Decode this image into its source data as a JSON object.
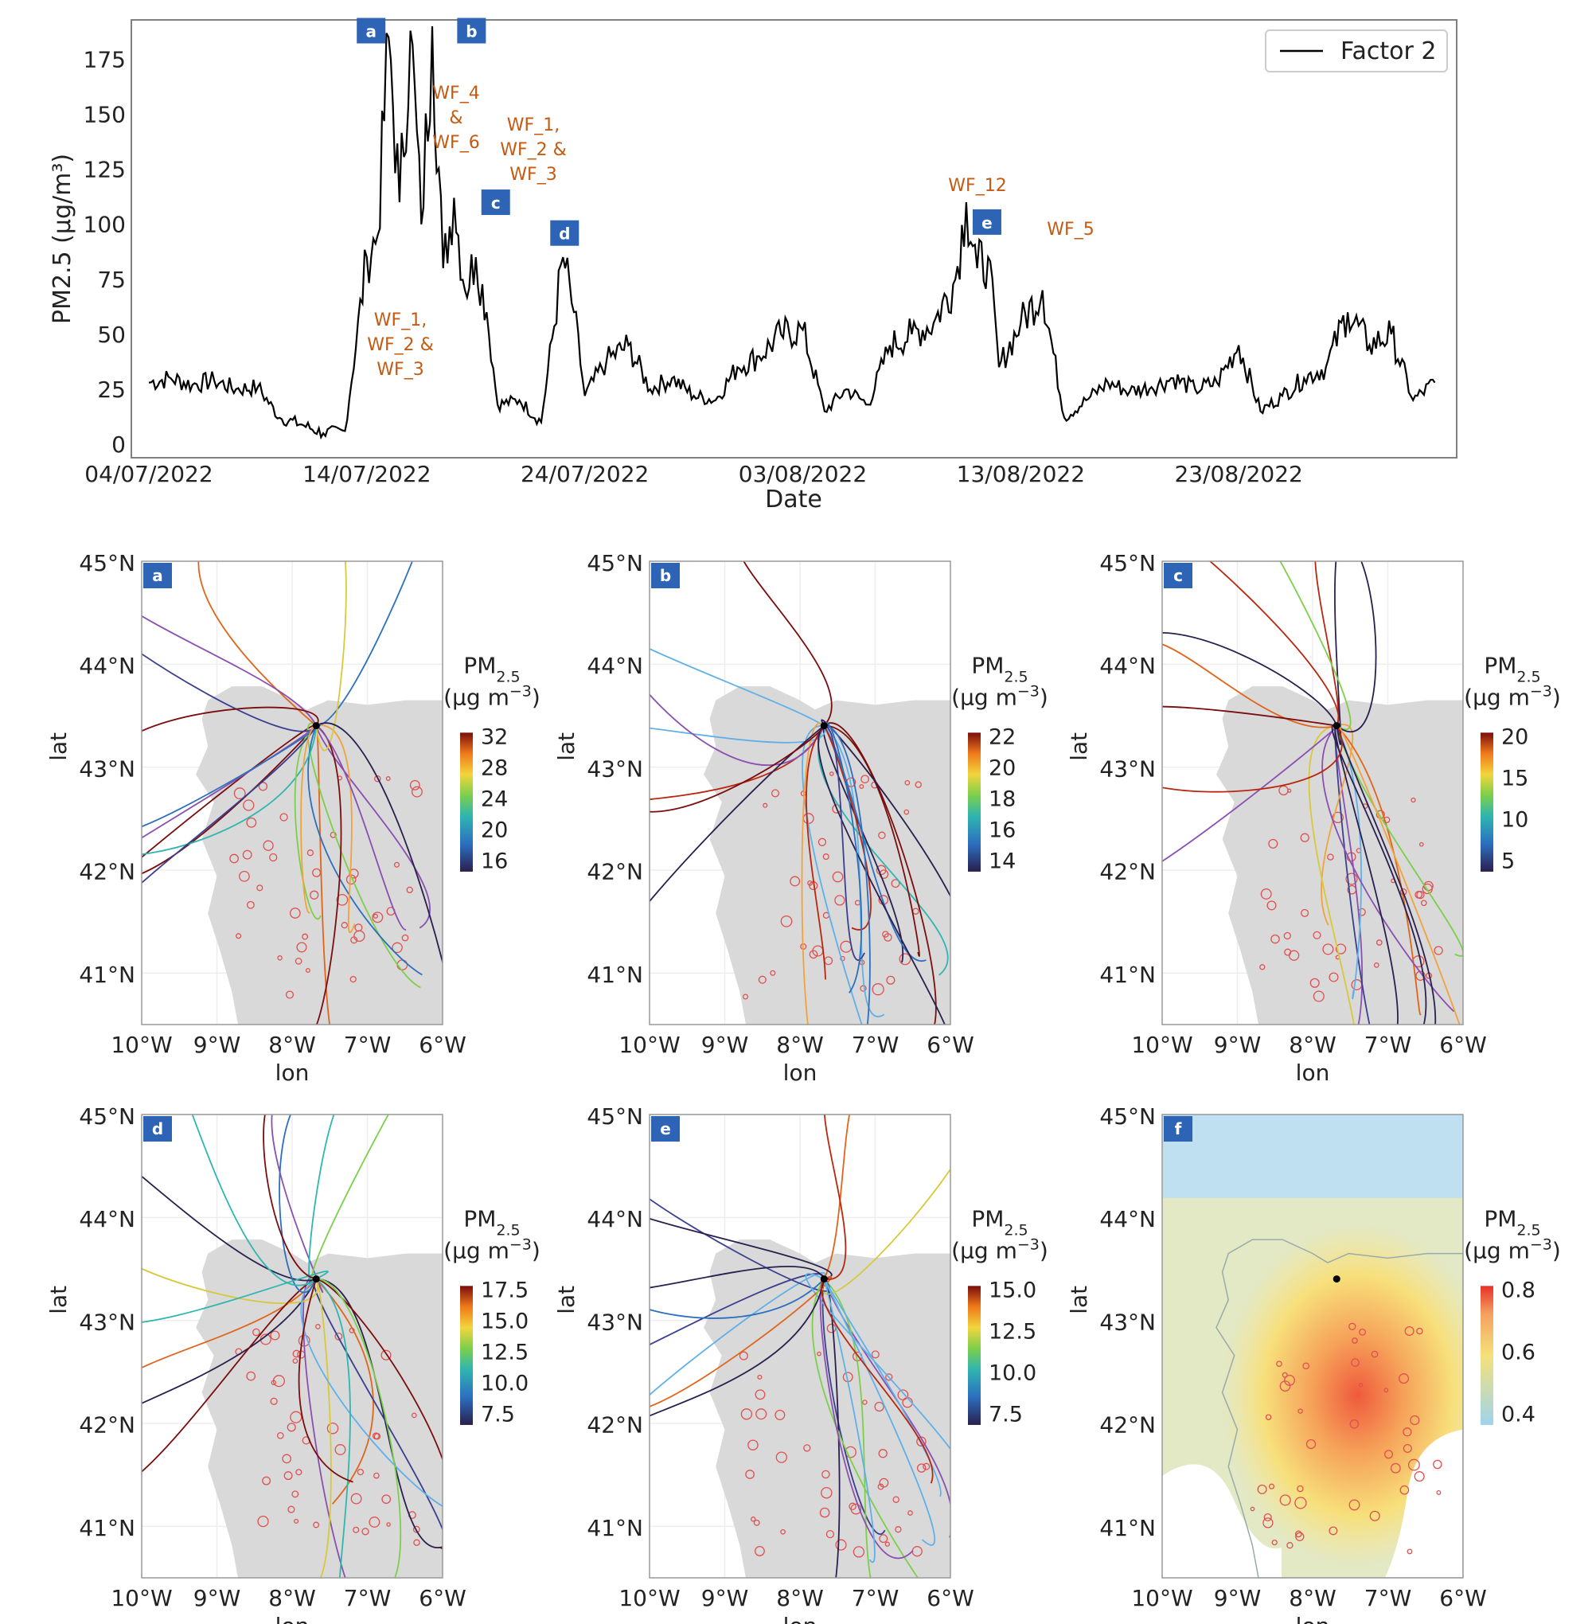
{
  "chart_data": [
    {
      "type": "line",
      "ylabel": "PM2.5 (μg/m³)",
      "xlabel": "Date",
      "ylim": [
        0,
        190
      ],
      "yticks": [
        0,
        25,
        50,
        75,
        100,
        125,
        150,
        175
      ],
      "xticks": [
        "04/07/2022",
        "14/07/2022",
        "24/07/2022",
        "03/08/2022",
        "13/08/2022",
        "23/08/2022"
      ],
      "legend": {
        "position": "top-right",
        "entries": [
          "Factor 2"
        ]
      },
      "series": [
        {
          "name": "Factor 2",
          "color": "#000000",
          "points": [
            [
              "2022-07-04",
              28
            ],
            [
              "2022-07-05",
              30
            ],
            [
              "2022-07-06",
              27
            ],
            [
              "2022-07-07",
              29
            ],
            [
              "2022-07-08",
              25
            ],
            [
              "2022-07-09",
              26
            ],
            [
              "2022-07-10",
              12
            ],
            [
              "2022-07-11",
              9
            ],
            [
              "2022-07-12",
              5
            ],
            [
              "2022-07-13",
              6
            ],
            [
              "2022-07-14",
              85
            ],
            [
              "2022-07-14.5",
              95
            ],
            [
              "2022-07-15",
              185
            ],
            [
              "2022-07-15.5",
              110
            ],
            [
              "2022-07-16",
              188
            ],
            [
              "2022-07-16.5",
              100
            ],
            [
              "2022-07-17",
              190
            ],
            [
              "2022-07-17.5",
              80
            ],
            [
              "2022-07-18",
              112
            ],
            [
              "2022-07-18.5",
              70
            ],
            [
              "2022-07-19",
              85
            ],
            [
              "2022-07-19.5",
              60
            ],
            [
              "2022-07-20",
              18
            ],
            [
              "2022-07-21",
              20
            ],
            [
              "2022-07-22",
              10
            ],
            [
              "2022-07-23",
              85
            ],
            [
              "2022-07-23.5",
              60
            ],
            [
              "2022-07-24",
              22
            ],
            [
              "2022-07-25",
              38
            ],
            [
              "2022-07-26",
              45
            ],
            [
              "2022-07-27",
              25
            ],
            [
              "2022-07-28",
              30
            ],
            [
              "2022-07-29",
              22
            ],
            [
              "2022-07-30",
              20
            ],
            [
              "2022-07-31",
              35
            ],
            [
              "2022-08-01",
              40
            ],
            [
              "2022-08-02",
              50
            ],
            [
              "2022-08-03",
              52
            ],
            [
              "2022-08-04",
              15
            ],
            [
              "2022-08-05",
              25
            ],
            [
              "2022-08-06",
              18
            ],
            [
              "2022-08-07",
              45
            ],
            [
              "2022-08-08",
              50
            ],
            [
              "2022-08-09",
              55
            ],
            [
              "2022-08-10",
              75
            ],
            [
              "2022-08-10.5",
              110
            ],
            [
              "2022-08-11",
              80
            ],
            [
              "2022-08-11.5",
              85
            ],
            [
              "2022-08-12",
              35
            ],
            [
              "2022-08-13",
              55
            ],
            [
              "2022-08-14",
              70
            ],
            [
              "2022-08-15",
              12
            ],
            [
              "2022-08-16",
              20
            ],
            [
              "2022-08-17",
              28
            ],
            [
              "2022-08-18",
              24
            ],
            [
              "2022-08-19",
              26
            ],
            [
              "2022-08-20",
              30
            ],
            [
              "2022-08-21",
              25
            ],
            [
              "2022-08-22",
              28
            ],
            [
              "2022-08-23",
              45
            ],
            [
              "2022-08-24",
              15
            ],
            [
              "2022-08-25",
              22
            ],
            [
              "2022-08-26",
              30
            ],
            [
              "2022-08-27",
              35
            ],
            [
              "2022-08-28",
              60
            ],
            [
              "2022-08-29",
              45
            ],
            [
              "2022-08-30",
              50
            ],
            [
              "2022-08-31",
              20
            ],
            [
              "2022-09-01",
              28
            ]
          ]
        }
      ],
      "markers": [
        {
          "label": "a",
          "date": "2022-07-15",
          "value": 188
        },
        {
          "label": "b",
          "date": "2022-07-18",
          "value": 188
        },
        {
          "label": "c",
          "date": "2022-07-19",
          "value": 110
        },
        {
          "label": "d",
          "date": "2022-07-23",
          "value": 96
        },
        {
          "label": "e",
          "date": "2022-08-12",
          "value": 101
        }
      ],
      "annotations": [
        {
          "lines": [
            "WF_4",
            "&",
            "WF_6"
          ],
          "color": "#c55a11"
        },
        {
          "lines": [
            "WF_1,",
            "WF_2 &",
            "WF_3"
          ],
          "color": "#c55a11"
        },
        {
          "lines": [
            "WF_1,",
            "WF_2 &",
            "WF_3"
          ],
          "color": "#c55a11"
        },
        {
          "lines": [
            "WF_12"
          ],
          "color": "#c55a11"
        },
        {
          "lines": [
            "WF_5"
          ],
          "color": "#c55a11"
        }
      ]
    },
    {
      "type": "map",
      "panels": [
        {
          "label": "a",
          "colorbar": [
            "32",
            "28",
            "24",
            "20",
            "16"
          ]
        },
        {
          "label": "b",
          "colorbar": [
            "22",
            "20",
            "18",
            "16",
            "14"
          ]
        },
        {
          "label": "c",
          "colorbar": [
            "20",
            "15",
            "10",
            "5"
          ]
        },
        {
          "label": "d",
          "colorbar": [
            "17.5",
            "15.0",
            "12.5",
            "10.0",
            "7.5"
          ]
        },
        {
          "label": "e",
          "colorbar": [
            "15.0",
            "12.5",
            "10.0",
            "7.5"
          ]
        },
        {
          "label": "f",
          "colorbar": [
            "0.8",
            "0.6",
            "0.4"
          ]
        }
      ],
      "colorbar_title": [
        "PM",
        "2.5",
        "(μg m",
        "−3",
        ")"
      ],
      "xlabel": "lon",
      "ylabel": "lat",
      "xticks": [
        "10°W",
        "9°W",
        "8°W",
        "7°W",
        "6°W"
      ],
      "yticks": [
        "45°N",
        "44°N",
        "43°N",
        "42°N",
        "41°N"
      ],
      "colors": {
        "land": "#d9d9d9",
        "fires": "#e05050",
        "label_box": "#2e64b5",
        "sea": "#ffffff"
      }
    }
  ]
}
